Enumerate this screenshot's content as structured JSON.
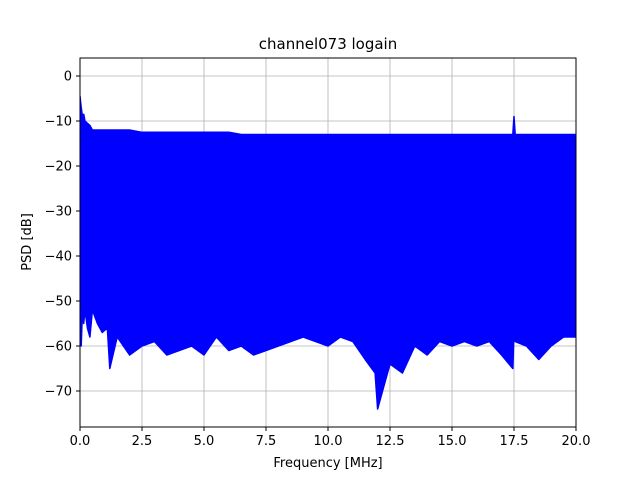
{
  "chart_data": {
    "type": "line",
    "title": "channel073 logain",
    "xlabel": "Frequency [MHz]",
    "ylabel": "PSD [dB]",
    "xlim": [
      0,
      20
    ],
    "ylim": [
      -78,
      4
    ],
    "xticks": [
      0,
      2.5,
      5,
      7.5,
      10,
      12.5,
      15,
      17.5,
      20
    ],
    "xtick_labels": [
      "0.0",
      "2.5",
      "5.0",
      "7.5",
      "10.0",
      "12.5",
      "15.0",
      "17.5",
      "20.0"
    ],
    "yticks": [
      0,
      -10,
      -20,
      -30,
      -40,
      -50,
      -60,
      -70
    ],
    "ytick_labels": [
      "0",
      "−10",
      "−20",
      "−30",
      "−40",
      "−50",
      "−60",
      "−70"
    ],
    "grid": true,
    "series": [
      {
        "color": "#0000ff",
        "x": [
          0.0,
          0.05,
          0.1,
          0.15,
          0.2,
          0.3,
          0.4,
          0.5,
          0.7,
          0.9,
          1.1,
          1.2,
          1.5,
          2.0,
          2.5,
          3.0,
          3.5,
          4.0,
          4.5,
          5.0,
          5.5,
          6.0,
          6.5,
          7.0,
          7.5,
          8.0,
          8.5,
          9.0,
          9.5,
          10.0,
          10.5,
          11.0,
          11.5,
          11.9,
          12.0,
          12.5,
          13.0,
          13.5,
          14.0,
          14.5,
          15.0,
          15.5,
          16.0,
          16.5,
          17.0,
          17.45,
          17.5,
          17.55,
          18.0,
          18.5,
          19.0,
          19.5,
          20.0
        ],
        "upper": [
          -4.5,
          -7,
          -9,
          -8.5,
          -10,
          -10.5,
          -11,
          -12,
          -12,
          -12,
          -12,
          -12,
          -12,
          -12,
          -12.5,
          -12.5,
          -12.5,
          -12.5,
          -12.5,
          -12.5,
          -12.5,
          -12.5,
          -13,
          -13,
          -13,
          -13,
          -13,
          -13,
          -13,
          -13,
          -13,
          -13,
          -13,
          -13,
          -13,
          -13,
          -13,
          -13,
          -13,
          -13,
          -13,
          -13,
          -13,
          -13,
          -13,
          -13,
          -9,
          -13,
          -13,
          -13,
          -13,
          -13,
          -13
        ],
        "lower": [
          -55,
          -60,
          -52,
          -55,
          -52,
          -56,
          -58,
          -52,
          -55,
          -57,
          -56,
          -65,
          -58,
          -62,
          -60,
          -59,
          -62,
          -61,
          -60,
          -62,
          -58,
          -61,
          -60,
          -62,
          -61,
          -60,
          -59,
          -58,
          -59,
          -60,
          -58,
          -59,
          -63,
          -66,
          -74,
          -64,
          -66,
          -60,
          -62,
          -59,
          -60,
          -59,
          -60,
          -59,
          -62,
          -65,
          -57,
          -59,
          -60,
          -63,
          -60,
          -58,
          -58
        ]
      }
    ]
  }
}
